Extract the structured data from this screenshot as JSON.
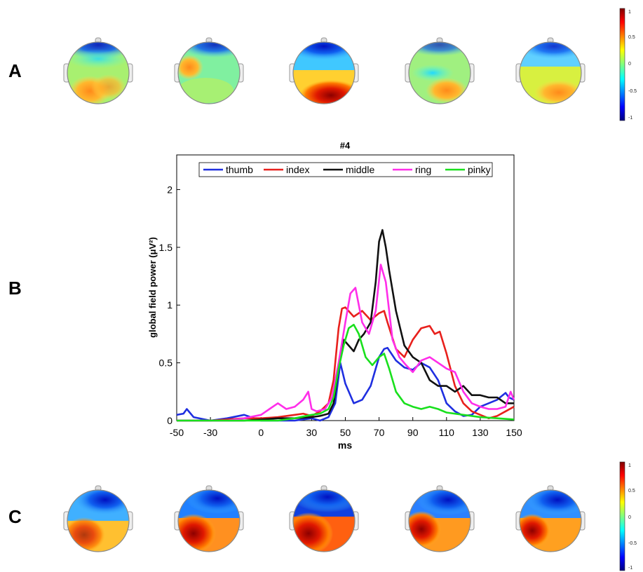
{
  "panels": {
    "a": "A",
    "b": "B",
    "c": "C"
  },
  "colorbar_a": {
    "ticks": [
      "1",
      "0.5",
      "0",
      "-0.5",
      "-1"
    ]
  },
  "colorbar_c": {
    "ticks": [
      "1",
      "0.5",
      "0",
      "-0.5",
      "-1"
    ]
  },
  "topo_row_a": [
    "topo-a1",
    "topo-a2",
    "topo-a3",
    "topo-a4",
    "topo-a5"
  ],
  "topo_row_c": [
    "topo-c1",
    "topo-c2",
    "topo-c3",
    "topo-c4",
    "topo-c5"
  ],
  "chart_data": {
    "type": "line",
    "title": "#4",
    "xlabel": "ms",
    "ylabel": "global field power (μV²)",
    "xlim": [
      -50,
      150
    ],
    "ylim": [
      0,
      2.3
    ],
    "xticks": [
      -50,
      -30,
      0,
      30,
      50,
      70,
      90,
      110,
      130,
      150
    ],
    "yticks": [
      0,
      0.5,
      1,
      1.5,
      2
    ],
    "legend_position": "top",
    "series": [
      {
        "name": "thumb",
        "color": "#1f2fe0",
        "x": [
          -50,
          -46,
          -44,
          -40,
          -30,
          -20,
          -10,
          0,
          10,
          20,
          30,
          35,
          40,
          44,
          47,
          50,
          55,
          60,
          65,
          70,
          73,
          75,
          80,
          85,
          90,
          95,
          100,
          105,
          110,
          115,
          120,
          125,
          130,
          135,
          140,
          145,
          147,
          150
        ],
        "y": [
          0.05,
          0.06,
          0.1,
          0.03,
          0.0,
          0.02,
          0.05,
          0.0,
          0.0,
          0.0,
          0.02,
          0.0,
          0.03,
          0.15,
          0.5,
          0.32,
          0.15,
          0.18,
          0.3,
          0.55,
          0.62,
          0.63,
          0.52,
          0.46,
          0.44,
          0.5,
          0.46,
          0.35,
          0.15,
          0.08,
          0.04,
          0.05,
          0.12,
          0.15,
          0.18,
          0.24,
          0.2,
          0.18
        ]
      },
      {
        "name": "index",
        "color": "#e8201c",
        "x": [
          -50,
          -40,
          -30,
          -20,
          -10,
          0,
          10,
          20,
          25,
          30,
          35,
          40,
          43,
          46,
          48,
          50,
          55,
          60,
          65,
          70,
          73,
          75,
          80,
          85,
          90,
          95,
          100,
          103,
          106,
          110,
          115,
          120,
          125,
          130,
          135,
          140,
          145,
          150
        ],
        "y": [
          0.0,
          0.0,
          0.0,
          0.01,
          0.02,
          0.02,
          0.03,
          0.05,
          0.06,
          0.04,
          0.08,
          0.15,
          0.35,
          0.8,
          0.97,
          0.98,
          0.9,
          0.95,
          0.87,
          0.93,
          0.95,
          0.85,
          0.62,
          0.55,
          0.7,
          0.8,
          0.82,
          0.75,
          0.77,
          0.58,
          0.3,
          0.15,
          0.08,
          0.05,
          0.02,
          0.04,
          0.08,
          0.12
        ]
      },
      {
        "name": "middle",
        "color": "#111111",
        "x": [
          -50,
          -40,
          -30,
          -20,
          -10,
          0,
          10,
          20,
          30,
          35,
          40,
          43,
          46,
          49,
          52,
          55,
          58,
          61,
          65,
          68,
          70,
          72,
          74,
          76,
          80,
          85,
          90,
          95,
          100,
          105,
          110,
          115,
          120,
          125,
          130,
          135,
          140,
          145,
          150
        ],
        "y": [
          0.0,
          0.0,
          0.0,
          0.0,
          0.0,
          0.01,
          0.02,
          0.02,
          0.03,
          0.04,
          0.06,
          0.15,
          0.45,
          0.7,
          0.65,
          0.6,
          0.7,
          0.75,
          0.85,
          1.2,
          1.55,
          1.65,
          1.5,
          1.3,
          0.95,
          0.65,
          0.55,
          0.5,
          0.35,
          0.3,
          0.3,
          0.25,
          0.3,
          0.22,
          0.22,
          0.2,
          0.2,
          0.15,
          0.15
        ]
      },
      {
        "name": "ring",
        "color": "#ff2ee9",
        "x": [
          -50,
          -40,
          -30,
          -20,
          -10,
          0,
          5,
          10,
          15,
          20,
          25,
          28,
          30,
          33,
          38,
          42,
          46,
          50,
          53,
          56,
          60,
          64,
          68,
          71,
          74,
          78,
          82,
          86,
          90,
          95,
          100,
          105,
          110,
          115,
          120,
          125,
          130,
          135,
          140,
          145,
          148,
          150
        ],
        "y": [
          0.0,
          0.0,
          0.0,
          0.0,
          0.02,
          0.05,
          0.1,
          0.15,
          0.1,
          0.12,
          0.18,
          0.25,
          0.1,
          0.08,
          0.1,
          0.2,
          0.5,
          0.85,
          1.1,
          1.15,
          0.85,
          0.75,
          0.95,
          1.35,
          1.2,
          0.7,
          0.55,
          0.48,
          0.42,
          0.52,
          0.55,
          0.5,
          0.45,
          0.42,
          0.25,
          0.15,
          0.12,
          0.1,
          0.1,
          0.12,
          0.25,
          0.18
        ]
      },
      {
        "name": "pinky",
        "color": "#19e01d",
        "x": [
          -50,
          -40,
          -30,
          -20,
          -10,
          0,
          10,
          20,
          30,
          35,
          40,
          43,
          46,
          49,
          52,
          55,
          58,
          62,
          66,
          70,
          73,
          76,
          80,
          85,
          90,
          95,
          100,
          105,
          110,
          120,
          130,
          140,
          150
        ],
        "y": [
          0.0,
          0.0,
          0.0,
          0.0,
          0.0,
          0.0,
          0.0,
          0.02,
          0.05,
          0.06,
          0.1,
          0.2,
          0.45,
          0.65,
          0.8,
          0.83,
          0.75,
          0.55,
          0.48,
          0.55,
          0.58,
          0.45,
          0.25,
          0.15,
          0.12,
          0.1,
          0.12,
          0.1,
          0.07,
          0.05,
          0.03,
          0.02,
          0.01
        ]
      }
    ]
  }
}
